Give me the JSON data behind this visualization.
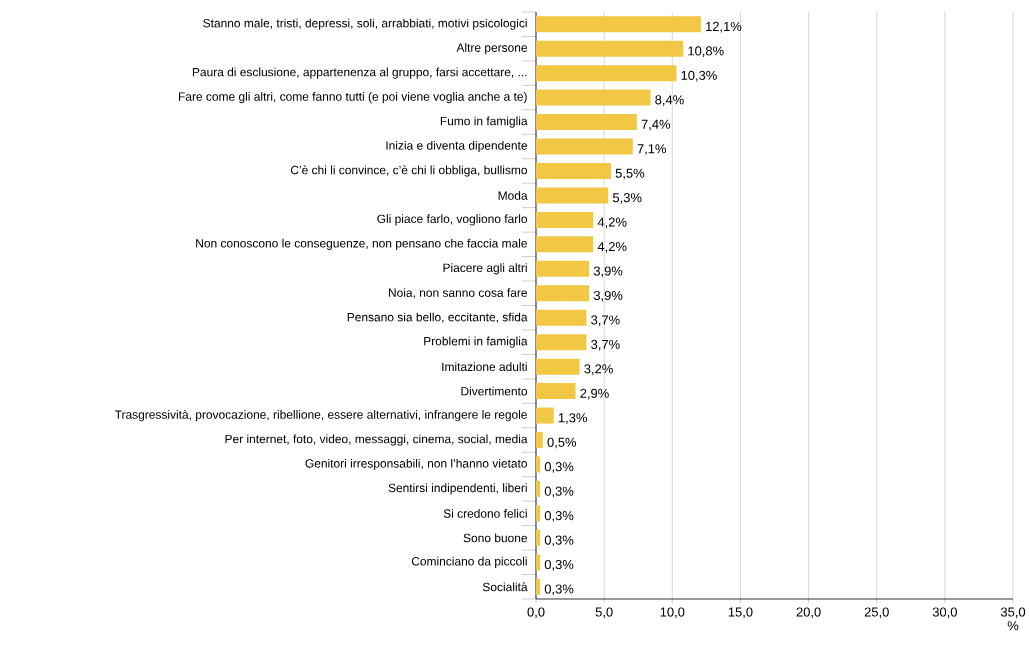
{
  "chart_data": {
    "type": "bar",
    "orientation": "horizontal",
    "xlabel": "%",
    "categories": [
      "Stanno male, tristi, depressi, soli, arrabbiati, motivi psicologici",
      "Altre persone",
      "Paura di esclusione, appartenenza al gruppo, farsi accettare, ...",
      "Fare come gli altri, come fanno tutti (e poi viene voglia anche a te)",
      "Fumo in famiglia",
      "Inizia e diventa dipendente",
      "C’è chi li convince, c’è chi li obbliga, bullismo",
      "Moda",
      "Gli piace farlo, vogliono farlo",
      "Non conoscono le conseguenze, non pensano che faccia male",
      "Piacere agli altri",
      "Noia, non sanno cosa fare",
      "Pensano sia bello, eccitante, sfida",
      "Problemi in famiglia",
      "Imitazione adulti",
      "Divertimento",
      "Trasgressività, provocazione, ribellione, essere alternativi, infrangere le regole",
      "Per internet, foto, video, messaggi, cinema, social, media",
      "Genitori irresponsabili, non l’hanno vietato",
      "Sentirsi indipendenti, liberi",
      "Si credono felici",
      "Sono buone",
      "Cominciano da piccoli",
      "Socialità"
    ],
    "values": [
      12.1,
      10.8,
      10.3,
      8.4,
      7.4,
      7.1,
      5.5,
      5.3,
      4.2,
      4.2,
      3.9,
      3.9,
      3.7,
      3.7,
      3.2,
      2.9,
      1.3,
      0.5,
      0.3,
      0.3,
      0.3,
      0.3,
      0.3,
      0.3
    ],
    "value_labels": [
      "12,1%",
      "10,8%",
      "10,3%",
      "8,4%",
      "7,4%",
      "7,1%",
      "5,5%",
      "5,3%",
      "4,2%",
      "4,2%",
      "3,9%",
      "3,9%",
      "3,7%",
      "3,7%",
      "3,2%",
      "2,9%",
      "1,3%",
      "0,5%",
      "0,3%",
      "0,3%",
      "0,3%",
      "0,3%",
      "0,3%",
      "0,3%"
    ],
    "color": "#f2c744",
    "xlim": [
      0,
      35
    ],
    "xticks": [
      {
        "value": 0,
        "label": "0,0"
      },
      {
        "value": 5,
        "label": "5,0"
      },
      {
        "value": 10,
        "label": "10,0"
      },
      {
        "value": 15,
        "label": "15,0"
      },
      {
        "value": 20,
        "label": "20,0"
      },
      {
        "value": 25,
        "label": "25,0"
      },
      {
        "value": 30,
        "label": "30,0"
      },
      {
        "value": 35,
        "label": "35,0"
      }
    ],
    "grid": "x"
  }
}
